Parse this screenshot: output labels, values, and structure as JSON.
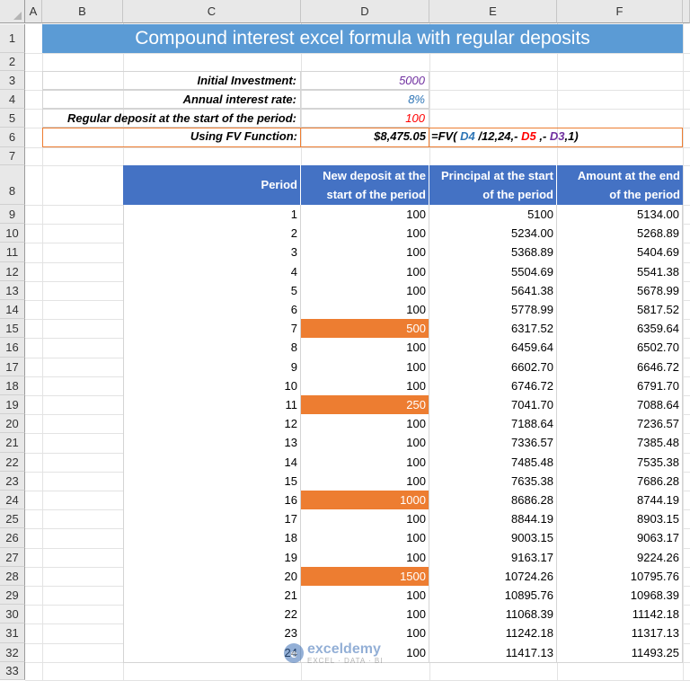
{
  "columns": [
    "A",
    "B",
    "C",
    "D",
    "E",
    "F"
  ],
  "rows": [
    "1",
    "2",
    "3",
    "4",
    "5",
    "6",
    "7",
    "8",
    "9",
    "10",
    "11",
    "12",
    "13",
    "14",
    "15",
    "16",
    "17",
    "18",
    "19",
    "20",
    "21",
    "22",
    "23",
    "24",
    "25",
    "26",
    "27",
    "28",
    "29",
    "30",
    "31",
    "32",
    "33"
  ],
  "title": "Compound interest excel formula with regular deposits",
  "inputs": {
    "initial_label": "Initial Investment:",
    "initial_value": "5000",
    "rate_label": "Annual interest rate:",
    "rate_value": "8%",
    "deposit_label": "Regular deposit at the start of the period:",
    "deposit_value": "100",
    "fv_label": "Using FV Function:",
    "fv_value": "$8,475.05"
  },
  "formula": {
    "p1": "=FV(",
    "ref1": " D4 ",
    "p2": "/12,24,-",
    "ref2": " D5 ",
    "p3": ",-",
    "ref3": " D3",
    "p4": ",1)"
  },
  "colors": {
    "title_bg": "#5b9bd5",
    "header_bg": "#4472c4",
    "highlight": "#ed7d31",
    "initial_value": "#7030a0",
    "rate_value": "#2e75b6",
    "deposit_value": "#ff0000"
  },
  "table": {
    "headers": [
      [
        "Period"
      ],
      [
        "New deposit at the",
        "start of the period"
      ],
      [
        "Principal at the start",
        "of the period"
      ],
      [
        "Amount at the end",
        "of the period"
      ]
    ],
    "rows": [
      {
        "period": "1",
        "deposit": "100",
        "principal": "5100",
        "amount": "5134.00",
        "hl": false
      },
      {
        "period": "2",
        "deposit": "100",
        "principal": "5234.00",
        "amount": "5268.89",
        "hl": false
      },
      {
        "period": "3",
        "deposit": "100",
        "principal": "5368.89",
        "amount": "5404.69",
        "hl": false
      },
      {
        "period": "4",
        "deposit": "100",
        "principal": "5504.69",
        "amount": "5541.38",
        "hl": false
      },
      {
        "period": "5",
        "deposit": "100",
        "principal": "5641.38",
        "amount": "5678.99",
        "hl": false
      },
      {
        "period": "6",
        "deposit": "100",
        "principal": "5778.99",
        "amount": "5817.52",
        "hl": false
      },
      {
        "period": "7",
        "deposit": "500",
        "principal": "6317.52",
        "amount": "6359.64",
        "hl": true
      },
      {
        "period": "8",
        "deposit": "100",
        "principal": "6459.64",
        "amount": "6502.70",
        "hl": false
      },
      {
        "period": "9",
        "deposit": "100",
        "principal": "6602.70",
        "amount": "6646.72",
        "hl": false
      },
      {
        "period": "10",
        "deposit": "100",
        "principal": "6746.72",
        "amount": "6791.70",
        "hl": false
      },
      {
        "period": "11",
        "deposit": "250",
        "principal": "7041.70",
        "amount": "7088.64",
        "hl": true
      },
      {
        "period": "12",
        "deposit": "100",
        "principal": "7188.64",
        "amount": "7236.57",
        "hl": false
      },
      {
        "period": "13",
        "deposit": "100",
        "principal": "7336.57",
        "amount": "7385.48",
        "hl": false
      },
      {
        "period": "14",
        "deposit": "100",
        "principal": "7485.48",
        "amount": "7535.38",
        "hl": false
      },
      {
        "period": "15",
        "deposit": "100",
        "principal": "7635.38",
        "amount": "7686.28",
        "hl": false
      },
      {
        "period": "16",
        "deposit": "1000",
        "principal": "8686.28",
        "amount": "8744.19",
        "hl": true
      },
      {
        "period": "17",
        "deposit": "100",
        "principal": "8844.19",
        "amount": "8903.15",
        "hl": false
      },
      {
        "period": "18",
        "deposit": "100",
        "principal": "9003.15",
        "amount": "9063.17",
        "hl": false
      },
      {
        "period": "19",
        "deposit": "100",
        "principal": "9163.17",
        "amount": "9224.26",
        "hl": false
      },
      {
        "period": "20",
        "deposit": "1500",
        "principal": "10724.26",
        "amount": "10795.76",
        "hl": true
      },
      {
        "period": "21",
        "deposit": "100",
        "principal": "10895.76",
        "amount": "10968.39",
        "hl": false
      },
      {
        "period": "22",
        "deposit": "100",
        "principal": "11068.39",
        "amount": "11142.18",
        "hl": false
      },
      {
        "period": "23",
        "deposit": "100",
        "principal": "11242.18",
        "amount": "11317.13",
        "hl": false
      },
      {
        "period": "24",
        "deposit": "100",
        "principal": "11417.13",
        "amount": "11493.25",
        "hl": false
      }
    ]
  },
  "watermark": {
    "name": "exceldemy",
    "tagline": "EXCEL · DATA · BI"
  }
}
